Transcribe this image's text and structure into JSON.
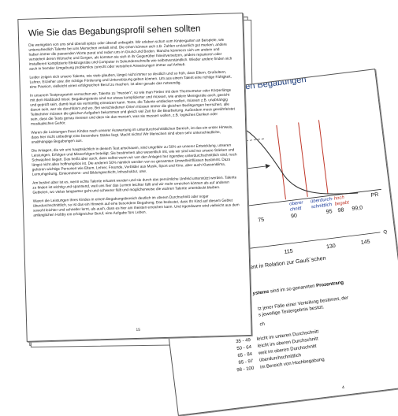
{
  "back_page": {
    "title": "dlichen Begabungen",
    "chart_labels": {
      "zone1": "d",
      "zone1b": "chnitt",
      "zone2": "oberer",
      "zone2b": "chnitt",
      "zone3": "überdurch-",
      "zone3b": "schnittlich",
      "zone4": "hoch",
      "zone4b": "begabt",
      "axis_end": "PR",
      "percent_mark": "%",
      "ticks_top": [
        "0",
        "75",
        "90",
        "95",
        "98",
        "99,0"
      ],
      "ticks_bottom": [
        "00",
        "115",
        "130",
        "145"
      ],
      "axis_q": "Q"
    },
    "caption": "gsquotient in Relation zur Gauß´schen",
    "para1_bold": "ystems",
    "para1_rest": " sind im so genannten ",
    "para1_bold2": "Prozentrang",
    "para2_line1": "tz jener Fälle einer Verteilung bestimmt, der",
    "para2_line2": "s jeweilige Testergebnis besitzt.",
    "para3": "ch",
    "table": [
      {
        "range": "35 - 49",
        "label": "leicht im unteren Durchschnitt"
      },
      {
        "range": "50 - 64",
        "label": "leicht im oberen Durchschnitt"
      },
      {
        "range": "65 - 84",
        "label": "weit im oberen Durchschnitt"
      },
      {
        "range": "85 - 97",
        "label": "überdurchschnittlich"
      },
      {
        "range": "98 - 100",
        "label": "im Bereich von Hochbegabung"
      }
    ],
    "page_number": "4"
  },
  "front_page": {
    "title": "Wie Sie das Begabungsprofil sehen sollten",
    "paragraphs": [
      "Die wenigsten von uns sind überall spitze oder überall unbegabt. Wir erleben schon vom Kindergarten an Beispiele, wie unterschiedlich Talente bei uns Menschen verteilt sind. Die einen können sich z.B. Zahlen erstaunlich gut merken, andere haben immer die passenden Worte parat und reden uns in Grund und Boden. Manche kümmern sich um andere und verstehen deren Wünsche und Sorgen, als könnten sie sich in ihr Gegenüber hineinversetzen, andere reparieren oder installieren komplizierte Elektrogeräte und Computer in Sekundenschnelle wie selbstverständlich. Wieder andere finden sich auch in fremder Umgebung problemlos zurecht oder verstehen Anweisungen immer auf Anhieb.",
      "Leider zeigen sich unsere Talente, wie viele glauben, längst nicht immer so deutlich und so früh, dass Eltern, Großeltern, Lehrer, Erzieher usw. die richtige Förderung und Unterstützung geben können. Um aus einem Talent eine richtige Fähigkeit, eine Passion, vielleicht einen erfolgreichen Beruf zu machen, ist aber gerade das notwendig.",
      "In unserem Testprogramm versuchen wir, Talente zu \"messen\", so wie man Fieber mit dem Thermometer oder Körperlänge mit dem Maßband misst. Begabungstests sind nur etwas komplizierter und müssen, wie andere Messgeräte auch, geeicht und geprüft sein, damit man sie vernünftig einsetzen kann. Tests, die Talente entdecken wollen, müssen z.B. unabhängig davon sein, wer sie durchführt und wo. Bei verschiedenen Orten müssen immer die gleichen Bedingungen herrschen, alle Teilnehmer müssen die gleichen Aufgaben bekommen und gleich viel Zeit für die Bearbeitung. Außerdem muss gewährleistet sein, dass die Tests genau messen und dass sie das messen, was sie messen wollen, z.B. logisches Denken oder musikalisches Gehör.",
      "Waren die Leistungen Ihres Kindes nach unserer Auswertung im unterdurchschnittlichen Bereich, ist das ein erster Hinweis, dass hier nicht unbedingt eine besondere Stärke liegt. Macht nichts! Wir Menschen sind eben sehr unterschiedliche, unabhängige Begabungen aus.",
      "Die Anlagen, die wir uns hauptsächlich in diesem Test anschauen, sind ungefähr zu 50% an unserer Entwicklung, unseren Leistungen, Erfolgen und Misserfolgen beteiligt. Sie bestimmen also wesentlich mit, wie wir sind und wo unsere Stärken und Schwächen liegen. Das heißt aber auch, dass selbst wenn wir von den Anlagen her irgendwo unterdurchschnittlich sind, noch längst nicht alles hoffnungslos ist. Die anderen 50% nämlich werden von so genannten Umwelteinflüssen bestimmt. Dazu gehören wichtige Personen wie Eltern, Lehrer, Freunde, Vorbilder aus Musik, Sport und Kino, aber auch Klassenklima, Lernumgebung, Einkommens- und Bildungsschicht, Infrastruktur, usw.",
      "Am besten aber ist es, wenn echte Talente erkannt werden und sie durch das persönliche Umfeld unterstützt werden. Talente zu finden ist wichtig und spannend, weil uns hier das Lernen leichter fällt und wir mehr erreichen können als auf anderen Gebieten, wo vielas langsamer geht und schwerer fällt und möglicherweise die wahren Talente unentdeckt bleiben.",
      "Waren die Leistungen Ihres Kindes in einem Begabungsbereich deutlich im oberen Durchschnitt oder sogar überdurchschnittlich, so ist das ein Hinweis auf eine besondere Begabung. Das bedeutet, dass Ihr Kind auf diesem Gebiet sowohl leichter und schneller lernt, als auch, dass es hier am meisten erreichen kann. Und irgendwann wird vielleicht aus dem anfänglichen Hobby ein erfolgreicher Beruf, eine Aufgabe fürs Leben."
    ],
    "page_number": "15"
  }
}
